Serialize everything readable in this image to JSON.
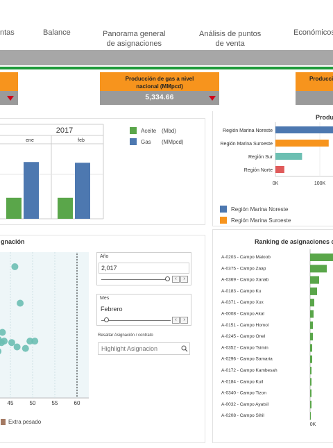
{
  "nav": {
    "items": [
      {
        "label": "ntas"
      },
      {
        "label": "Balance"
      },
      {
        "label": "Panorama general\nde asignaciones"
      },
      {
        "label": "Análisis de puntos\nde venta"
      },
      {
        "label": "Económicos"
      }
    ]
  },
  "kpis": [
    {
      "title": "",
      "value": ""
    },
    {
      "title": "Producción de gas a nivel nacional (MMpcd)",
      "value": "5,334.66"
    },
    {
      "title": "Producci",
      "value": ""
    }
  ],
  "colors": {
    "aceite": "#5aa64a",
    "gas": "#4d78b0",
    "orange": "#f7941d",
    "teal": "#6cbfb2",
    "red": "#e05a5a",
    "extra_pesado": "#a47a63"
  },
  "prod_chart": {
    "year": "2017",
    "legend": [
      {
        "name": "Aceite",
        "unit": "(Mbd)",
        "color": "#5aa64a"
      },
      {
        "name": "Gas",
        "unit": "(MMpcd)",
        "color": "#4d78b0"
      }
    ],
    "chart_data": {
      "type": "bar",
      "categories": [
        "ene",
        "feb"
      ],
      "series": [
        {
          "name": "Aceite",
          "values": [
            0.27,
            0.27
          ]
        },
        {
          "name": "Gas",
          "values": [
            0.73,
            0.72
          ]
        }
      ],
      "ylim": [
        0,
        1
      ]
    }
  },
  "region_chart": {
    "title": "Produ",
    "chart_data": {
      "type": "bar",
      "categories": [
        "Región Marina Noreste",
        "Región Marina Suroeste",
        "Región Sur",
        "Región Norte"
      ],
      "values": [
        140000,
        120000,
        60000,
        20000
      ],
      "colors": [
        "#4d78b0",
        "#f7941d",
        "#6cbfb2",
        "#e05a5a"
      ],
      "ticks": [
        "0K",
        "100K"
      ],
      "xlim": [
        0,
        150000
      ]
    },
    "legend": [
      {
        "name": "Región Marina Noreste",
        "color": "#4d78b0"
      },
      {
        "name": "Región Marina Suroeste",
        "color": "#f7941d"
      }
    ]
  },
  "scatter_chart": {
    "title": "gnación",
    "chart_data": {
      "type": "scatter",
      "x_ticks": [
        "45",
        "50",
        "55",
        "60"
      ],
      "xlim": [
        40,
        60
      ],
      "points": [
        {
          "x": 40.6,
          "y": 0.62
        },
        {
          "x": 43.2,
          "y": 0.45
        },
        {
          "x": 42.3,
          "y": 0.4
        },
        {
          "x": 42.2,
          "y": 0.38
        },
        {
          "x": 43.0,
          "y": 0.38
        },
        {
          "x": 43.6,
          "y": 0.39
        },
        {
          "x": 45.3,
          "y": 0.38
        },
        {
          "x": 46.5,
          "y": 0.35
        },
        {
          "x": 48.4,
          "y": 0.34
        },
        {
          "x": 49.4,
          "y": 0.39
        },
        {
          "x": 50.5,
          "y": 0.39
        },
        {
          "x": 42.2,
          "y": 0.32
        },
        {
          "x": 47.2,
          "y": 0.65
        },
        {
          "x": 46.0,
          "y": 0.9
        }
      ]
    },
    "legend": [
      {
        "name": "Extra pesado",
        "color": "#a47a63"
      }
    ]
  },
  "filters": {
    "year": {
      "label": "Año",
      "value": "2,017"
    },
    "month": {
      "label": "Mes",
      "value": "Febrero"
    },
    "highlight": {
      "label": "Resaltar Asignación / contrato",
      "placeholder": "Highlight Asignacion"
    }
  },
  "ranking_chart": {
    "title": "Ranking de asignaciones co",
    "chart_data": {
      "type": "bar",
      "categories": [
        "A-0203 - Campo Maloob",
        "A-0375 - Campo Zaap",
        "A-0369 - Campo Xanab",
        "A-0183 - Campo Ku",
        "A-0371 - Campo Xux",
        "A-0008 - Campo Akal",
        "A-0151 - Campo Homol",
        "A-0245 - Campo Onel",
        "A-0352 - Campo Tsimin",
        "A-0296 - Campo Samaria",
        "A-0172 - Campo Kambesah",
        "A-0184 - Campo Kuil",
        "A-0340 - Campo Tizon",
        "A-0032 - Campo Ayatsil",
        "A-0208 - Campo Sihil"
      ],
      "values": [
        34,
        24,
        13,
        10,
        6,
        5,
        4,
        4,
        3,
        3,
        2,
        2,
        2,
        2,
        1
      ],
      "ticks": [
        "0K"
      ],
      "xlim": [
        0,
        100
      ]
    }
  }
}
